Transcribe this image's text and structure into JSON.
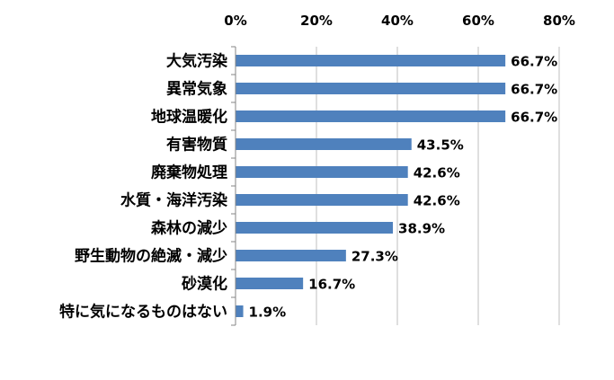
{
  "chart_data": {
    "type": "bar",
    "orientation": "horizontal",
    "categories": [
      "大気汚染",
      "異常気象",
      "地球温暖化",
      "有害物質",
      "廃棄物処理",
      "水質・海洋汚染",
      "森林の減少",
      "野生動物の絶滅・減少",
      "砂漠化",
      "特に気になるものはない"
    ],
    "values": [
      66.7,
      66.7,
      66.7,
      43.5,
      42.6,
      42.6,
      38.9,
      27.3,
      16.7,
      1.9
    ],
    "data_labels": [
      "66.7%",
      "66.7%",
      "66.7%",
      "43.5%",
      "42.6%",
      "42.6%",
      "38.9%",
      "27.3%",
      "16.7%",
      "1.9%"
    ],
    "x_ticks": [
      "0%",
      "20%",
      "40%",
      "60%",
      "80%"
    ],
    "xlim": [
      0,
      80
    ],
    "x_axis_position": "top",
    "title": "",
    "xlabel": "",
    "ylabel": "",
    "grid": true,
    "legend": "none",
    "bar_color": "#4F81BD",
    "grid_color": "#BFBFBF"
  }
}
